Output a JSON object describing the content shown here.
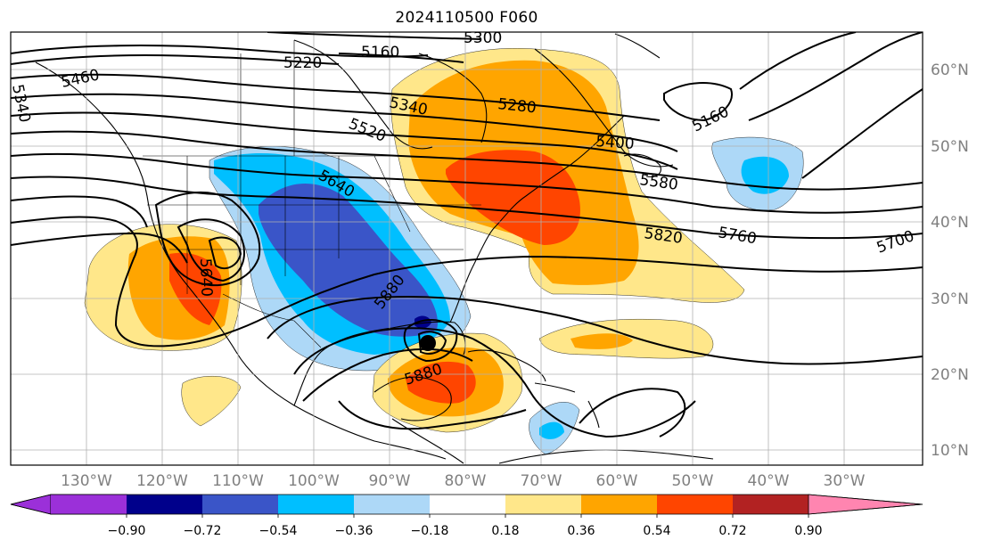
{
  "title": "2024110500 F060",
  "lat_labels": [
    "60°N",
    "50°N",
    "40°N",
    "30°N",
    "20°N",
    "10°N"
  ],
  "lon_labels": [
    "130°W",
    "120°W",
    "110°W",
    "100°W",
    "90°W",
    "80°W",
    "70°W",
    "60°W",
    "50°W",
    "40°W",
    "30°W"
  ],
  "colorbar": {
    "ticks": [
      "−0.90",
      "−0.72",
      "−0.54",
      "−0.36",
      "−0.18",
      "0.18",
      "0.36",
      "0.54",
      "0.72",
      "0.90"
    ],
    "colors": [
      "#9b30d9",
      "#00008b",
      "#3a55c8",
      "#00bfff",
      "#add8f7",
      "#ffffff",
      "#ffe78a",
      "#ffa500",
      "#ff4500",
      "#b22222",
      "#ff85b0"
    ]
  },
  "contour_labels": {
    "c5300": "5300",
    "c5160top": "5160",
    "c5220": "5220",
    "c5460": "5460",
    "c5340w": "5340",
    "c5340": "5340",
    "c5280": "5280",
    "c5520": "5520",
    "c5160e": "5160",
    "c5400": "5400",
    "c5640": "5640",
    "c5580": "5580",
    "c5820": "5820",
    "c5760": "5760",
    "c5700": "5700",
    "c5640s": "5640",
    "c5880a": "5880",
    "c5880b": "5880"
  },
  "colors": {
    "land_line": "#000000",
    "grid": "#b0b0b0",
    "contour": "#000000"
  }
}
